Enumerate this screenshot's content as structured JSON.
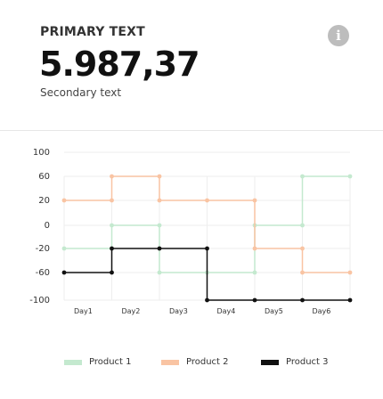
{
  "header": {
    "primary_label": "PRIMARY TEXT",
    "primary_value": "5.987,37",
    "secondary_text": "Secondary text",
    "info_icon": "info-icon"
  },
  "colors": {
    "product1": "#c4e9cf",
    "product2": "#f9c4a3",
    "product3": "#111111",
    "grid": "#eeeeee",
    "axis_text": "#333333"
  },
  "chart_data": {
    "type": "line",
    "step": true,
    "categories": [
      "Day1",
      "Day2",
      "Day3",
      "Day4",
      "Day5",
      "Day6"
    ],
    "y_ticks": [
      "100",
      "60",
      "20",
      "0",
      "-20",
      "-60",
      "-100"
    ],
    "grid": true,
    "legend_position": "bottom",
    "series": [
      {
        "name": "Product 1",
        "color": "#c4e9cf",
        "points": [
          [
            0.0,
            "-20"
          ],
          [
            1.0,
            "-20"
          ],
          [
            1.0,
            "0"
          ],
          [
            2.0,
            "0"
          ],
          [
            2.0,
            "-60"
          ],
          [
            3.0,
            "-60"
          ],
          [
            4.0,
            "-60"
          ],
          [
            4.0,
            "0"
          ],
          [
            5.0,
            "0"
          ],
          [
            5.0,
            "60"
          ],
          [
            6.0,
            "60"
          ]
        ]
      },
      {
        "name": "Product 2",
        "color": "#f9c4a3",
        "points": [
          [
            0.0,
            "20"
          ],
          [
            1.0,
            "20"
          ],
          [
            1.0,
            "60"
          ],
          [
            2.0,
            "60"
          ],
          [
            2.0,
            "20"
          ],
          [
            3.0,
            "20"
          ],
          [
            4.0,
            "20"
          ],
          [
            4.0,
            "-20"
          ],
          [
            5.0,
            "-20"
          ],
          [
            5.0,
            "-60"
          ],
          [
            6.0,
            "-60"
          ]
        ]
      },
      {
        "name": "Product 3",
        "color": "#111111",
        "points": [
          [
            0.0,
            "-60"
          ],
          [
            1.0,
            "-60"
          ],
          [
            1.0,
            "-20"
          ],
          [
            2.0,
            "-20"
          ],
          [
            3.0,
            "-20"
          ],
          [
            3.0,
            "-100"
          ],
          [
            4.0,
            "-100"
          ],
          [
            5.0,
            "-100"
          ],
          [
            6.0,
            "-100"
          ]
        ]
      }
    ]
  }
}
